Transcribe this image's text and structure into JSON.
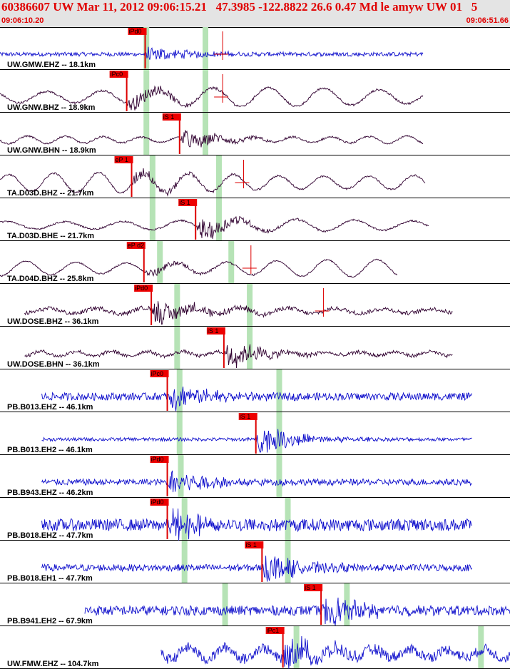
{
  "header": {
    "title": "60386607 UW Mar 11, 2012 09:06:15.21   47.3985 -122.8822 26.6 0.47 Md le amyw UW 01   5",
    "time_start": "09:06:10.20",
    "time_end": "09:06:51.66"
  },
  "chart_data": {
    "type": "seismogram",
    "event_id": "60386607",
    "origin_time": "09:06:15.21",
    "latitude": 47.3985,
    "longitude": -122.8822,
    "depth_km": 26.6,
    "magnitude": 0.47,
    "window_start_s": 0,
    "window_end_s": 41.46,
    "traces": [
      {
        "label": "UW.GMW.EHZ -- 18.1km",
        "color": "#1010cc",
        "kind": "short",
        "start": 0,
        "end": 34.4,
        "noise": 0.12,
        "amp": 0.5,
        "lp": 0,
        "picks": [
          {
            "label": "iPd0",
            "t": 11.8
          }
        ],
        "green": [
          11.9,
          16.7
        ],
        "theo": 18.1
      },
      {
        "label": "UW.GNW.BHZ -- 18.9km",
        "color": "#300030",
        "kind": "long",
        "start": 0,
        "end": 34.4,
        "noise": 0.06,
        "amp": 0.55,
        "lp": 0.55,
        "picks": [
          {
            "label": "iPc0",
            "t": 10.3
          }
        ],
        "green": [
          11.9,
          16.7
        ],
        "theo": 18.1
      },
      {
        "label": "UW.GNW.BHN -- 18.9km",
        "color": "#300030",
        "kind": "long",
        "start": 0,
        "end": 34.4,
        "noise": 0.05,
        "amp": 0.65,
        "lp": 0.22,
        "picks": [
          {
            "label": "iS 1",
            "t": 14.6
          }
        ],
        "green": [
          11.9,
          16.7
        ],
        "theo": null
      },
      {
        "label": "TA.D03D.BHZ -- 21.7km",
        "color": "#300030",
        "kind": "long",
        "start": 0,
        "end": 34.6,
        "noise": 0.05,
        "amp": 0.45,
        "lp": 0.6,
        "picks": [
          {
            "label": "eP 1",
            "t": 10.7
          }
        ],
        "green": [
          12.4,
          17.8
        ],
        "theo": 19.8
      },
      {
        "label": "TA.D03D.BHE -- 21.7km",
        "color": "#300030",
        "kind": "long",
        "start": 0,
        "end": 34.9,
        "noise": 0.05,
        "amp": 0.7,
        "lp": 0.35,
        "picks": [
          {
            "label": "iS 1",
            "t": 15.9
          }
        ],
        "green": [
          12.4,
          17.8
        ],
        "theo": null
      },
      {
        "label": "TA.D04D.BHZ -- 25.8km",
        "color": "#300030",
        "kind": "long",
        "start": 0,
        "end": 32.3,
        "noise": 0.04,
        "amp": 0.3,
        "lp": 0.5,
        "picks": [
          {
            "label": "eP d2",
            "t": 11.7
          }
        ],
        "green": [
          13.0,
          18.8
        ],
        "theo": 20.4
      },
      {
        "label": "UW.DOSE.BHZ -- 36.1km",
        "color": "#300030",
        "kind": "short",
        "start": 2.0,
        "end": 36.8,
        "noise": 0.12,
        "amp": 0.8,
        "lp": 0.2,
        "picks": [
          {
            "label": "iPd0",
            "t": 12.3
          }
        ],
        "green": [
          14.4,
          20.3
        ],
        "theo": 26.3
      },
      {
        "label": "UW.DOSE.BHN -- 36.1km",
        "color": "#300030",
        "kind": "short",
        "start": 2.0,
        "end": 36.8,
        "noise": 0.1,
        "amp": 0.9,
        "lp": 0.15,
        "picks": [
          {
            "label": "iS 1",
            "t": 18.2
          }
        ],
        "green": [
          14.4,
          20.3
        ],
        "theo": null
      },
      {
        "label": "PB.B013.EHZ -- 46.1km",
        "color": "#1010cc",
        "kind": "short",
        "start": 3.4,
        "end": 38.4,
        "noise": 0.22,
        "amp": 0.9,
        "lp": 0,
        "picks": [
          {
            "label": "iPc0",
            "t": 13.6
          }
        ],
        "green": [
          14.6,
          22.7
        ],
        "theo": null
      },
      {
        "label": "PB.B013.EH2 -- 46.1km",
        "color": "#1010cc",
        "kind": "short",
        "start": 3.4,
        "end": 38.4,
        "noise": 0.1,
        "amp": 0.95,
        "lp": 0,
        "picks": [
          {
            "label": "iS 1",
            "t": 20.8
          }
        ],
        "green": [
          14.6,
          22.7
        ],
        "theo": null
      },
      {
        "label": "PB.B943.EHZ -- 46.2km",
        "color": "#1010cc",
        "kind": "short",
        "start": 3.4,
        "end": 38.4,
        "noise": 0.18,
        "amp": 0.95,
        "lp": 0,
        "picks": [
          {
            "label": "iPd0",
            "t": 13.6
          }
        ],
        "green": [
          14.7,
          22.7
        ],
        "theo": null
      },
      {
        "label": "PB.B018.EHZ -- 47.7km",
        "color": "#1010cc",
        "kind": "short",
        "start": 3.4,
        "end": 38.4,
        "noise": 0.35,
        "amp": 0.95,
        "lp": 0,
        "picks": [
          {
            "label": "iPd0",
            "t": 13.6
          }
        ],
        "green": [
          15.0,
          23.4
        ],
        "theo": null
      },
      {
        "label": "PB.B018.EH1 -- 47.7km",
        "color": "#1010cc",
        "kind": "short",
        "start": 3.4,
        "end": 38.4,
        "noise": 0.2,
        "amp": 0.95,
        "lp": 0,
        "picks": [
          {
            "label": "iS 1",
            "t": 21.3
          }
        ],
        "green": [
          15.0,
          23.4
        ],
        "theo": null
      },
      {
        "label": "PB.B941.EH2 -- 67.9km",
        "color": "#1010cc",
        "kind": "short",
        "start": 6.9,
        "end": 41.8,
        "noise": 0.28,
        "amp": 0.95,
        "lp": 0,
        "picks": [
          {
            "label": "iS 1",
            "t": 26.1
          }
        ],
        "green": [
          18.3,
          28.2
        ],
        "theo": null
      },
      {
        "label": "UW.FMW.EHZ -- 104.7km",
        "color": "#1010cc",
        "kind": "short",
        "start": 13.1,
        "end": 47.5,
        "noise": 0.3,
        "amp": 0.95,
        "lp": 0.35,
        "picks": [
          {
            "label": "iPc1",
            "t": 23.0
          }
        ],
        "green": [
          24.1,
          39.1
        ],
        "theo": null
      }
    ]
  }
}
